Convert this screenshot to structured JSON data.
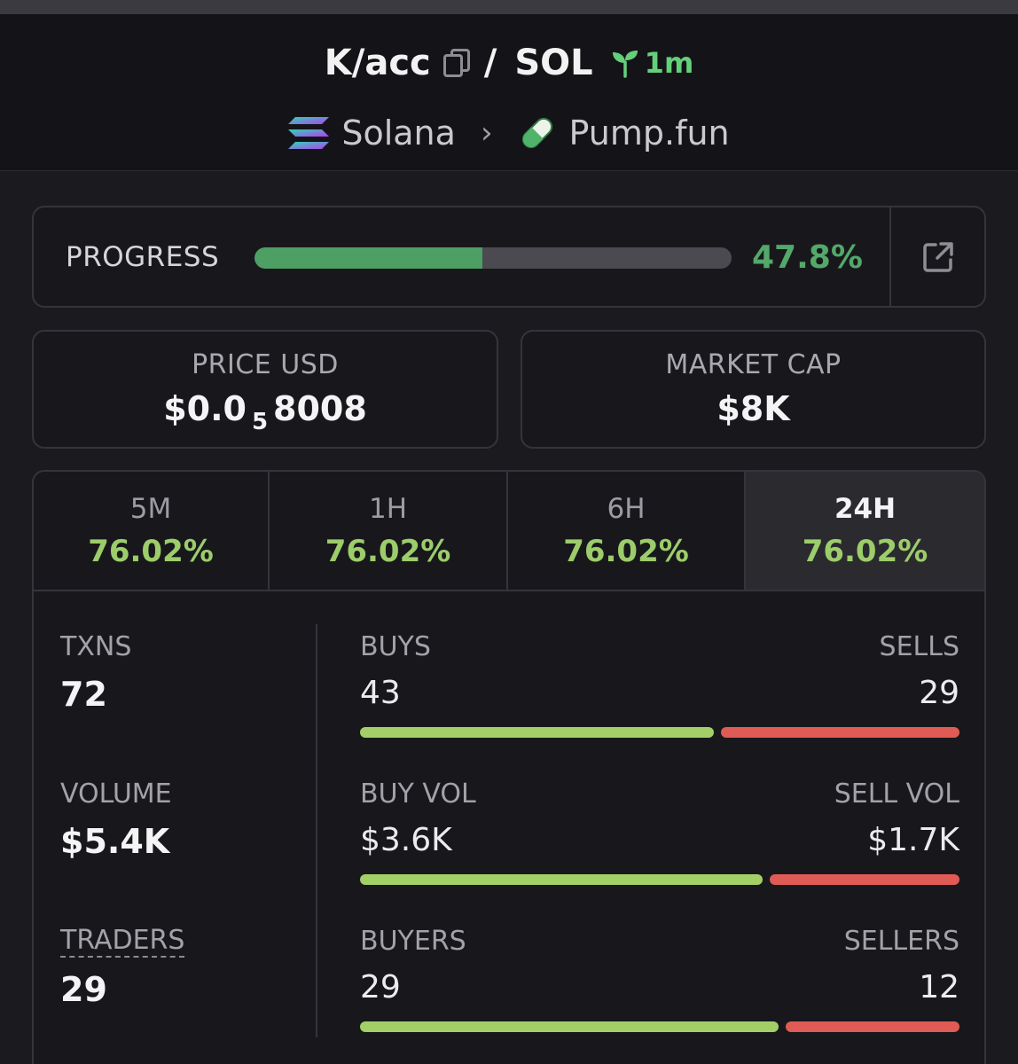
{
  "header": {
    "token": "K/acc",
    "slash": "/",
    "quote": "SOL",
    "age": "1m",
    "chain": "Solana",
    "chevron": "›",
    "platform": "Pump.fun"
  },
  "progress": {
    "label": "PROGRESS",
    "percent_text": "47.8%",
    "fraction": 0.478
  },
  "price": {
    "label": "PRICE USD",
    "prefix": "$0.0",
    "zeros": "5",
    "digits": "8008"
  },
  "market_cap": {
    "label": "MARKET CAP",
    "value": "$8K"
  },
  "tabs": [
    {
      "label": "5M",
      "change": "76.02%"
    },
    {
      "label": "1H",
      "change": "76.02%"
    },
    {
      "label": "6H",
      "change": "76.02%"
    },
    {
      "label": "24H",
      "change": "76.02%"
    }
  ],
  "metrics": {
    "txns": {
      "label": "TXNS",
      "value": "72"
    },
    "volume": {
      "label": "VOLUME",
      "value": "$5.4K"
    },
    "traders": {
      "label": "TRADERS",
      "value": "29"
    }
  },
  "splits": {
    "txns": {
      "left_label": "BUYS",
      "right_label": "SELLS",
      "left_value": "43",
      "right_value": "29",
      "left": 43,
      "right": 29
    },
    "volume": {
      "left_label": "BUY VOL",
      "right_label": "SELL VOL",
      "left_value": "$3.6K",
      "right_value": "$1.7K",
      "left": 3.6,
      "right": 1.7
    },
    "traders": {
      "left_label": "BUYERS",
      "right_label": "SELLERS",
      "left_value": "29",
      "right_value": "12",
      "left": 29,
      "right": 12
    }
  },
  "colors": {
    "green": "#9ccd6a",
    "progress_green": "#4e9f63",
    "buy_bar": "#a3cf67",
    "sell_bar": "#e05b55"
  }
}
